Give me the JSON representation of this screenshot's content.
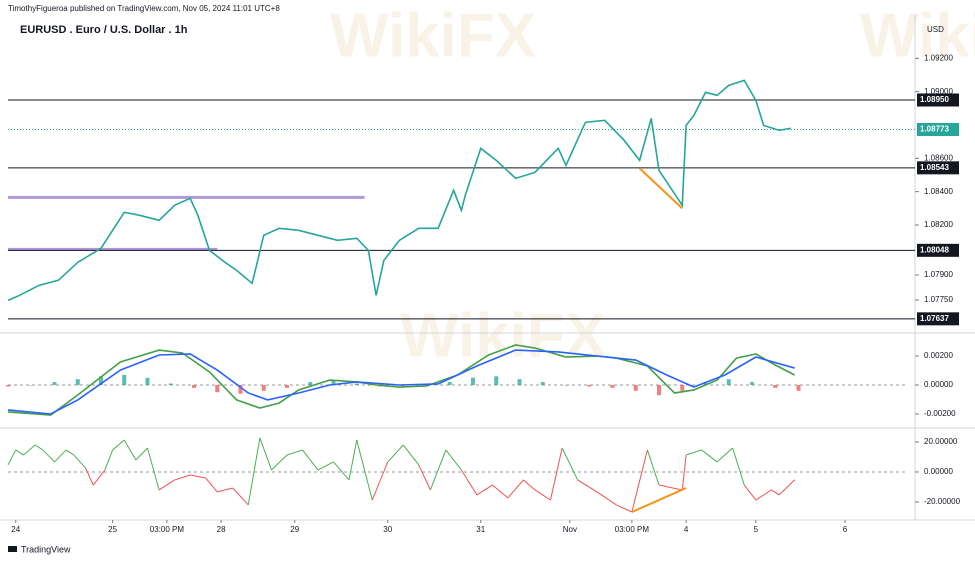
{
  "header": {
    "publisher": "TimothyFigueroa published on TradingView.com, Nov 05, 2024 11:01 UTC+8",
    "watermark": "WikiFX"
  },
  "footer": {
    "brand": "TradingView"
  },
  "chart_data": [
    {
      "type": "line",
      "title": "EURUSD . Euro / U.S. Dollar . 1h",
      "currency": "USD",
      "xlim": [
        0,
        232
      ],
      "ylim": [
        1.0757,
        1.0949
      ],
      "yticks": [
        {
          "value": 1.092,
          "label": "1.09200"
        },
        {
          "value": 1.09,
          "label": "1.09000"
        },
        {
          "value": 1.086,
          "label": "1.08600"
        },
        {
          "value": 1.084,
          "label": "1.08400"
        },
        {
          "value": 1.082,
          "label": "1.08200"
        },
        {
          "value": 1.079,
          "label": "1.07900"
        },
        {
          "value": 1.0775,
          "label": "1.07750"
        }
      ],
      "series": [
        {
          "color": "#26a69a",
          "x": [
            0,
            3,
            8,
            13,
            18,
            24,
            27,
            30,
            34,
            39,
            43,
            47,
            49,
            52,
            56,
            59,
            63,
            66,
            70,
            75,
            80,
            85,
            90,
            93,
            95,
            97,
            101,
            106,
            111,
            115,
            117,
            118,
            122,
            126,
            131,
            136,
            142,
            144,
            149,
            154,
            159,
            163,
            166,
            168,
            174,
            175,
            177,
            180,
            183,
            186,
            190,
            193,
            195,
            199,
            202
          ],
          "values": [
            1.07748,
            1.07778,
            1.07838,
            1.07868,
            1.07976,
            1.0806,
            1.08168,
            1.08276,
            1.08258,
            1.08228,
            1.08318,
            1.0836,
            1.08258,
            1.08048,
            1.07976,
            1.07928,
            1.0785,
            1.08138,
            1.0818,
            1.08168,
            1.08138,
            1.08108,
            1.0812,
            1.08048,
            1.07778,
            1.07988,
            1.08108,
            1.0818,
            1.0818,
            1.08408,
            1.08288,
            1.08378,
            1.0866,
            1.08588,
            1.0848,
            1.08516,
            1.0866,
            1.08558,
            1.08816,
            1.08828,
            1.08708,
            1.08588,
            1.0884,
            1.08528,
            1.08318,
            1.08798,
            1.08858,
            1.08996,
            1.08978,
            1.09038,
            1.09068,
            1.08948,
            1.08798,
            1.08768,
            1.0878
          ]
        }
      ],
      "levels": [
        {
          "value": 1.0895,
          "label": "1.08950"
        },
        1.08543,
        1.08048,
        1.07637
      ],
      "last_price": 1.08773,
      "last_price_color": "#26a69a",
      "zones": [
        {
          "value": 1.08366,
          "from": 0,
          "to": 92,
          "color": "#9575cd"
        },
        {
          "value": 1.08054,
          "from": 0,
          "to": 54,
          "color": "#9575cd"
        }
      ],
      "trendlines": [
        {
          "x": [
            163,
            174
          ],
          "values": [
            1.0854,
            1.083
          ],
          "color": "#f7931a"
        }
      ]
    },
    {
      "type": "combo",
      "xlim": [
        0,
        232
      ],
      "ylim": [
        -0.00276,
        0.00345
      ],
      "zero_line": true,
      "yticks": [
        {
          "value": 0.002,
          "label": "0.00200"
        },
        {
          "value": 0,
          "label": "0.00000"
        },
        {
          "value": -0.002,
          "label": "-0.00200"
        }
      ],
      "series": [
        {
          "type": "bar",
          "color": "#26a69a",
          "negative_color": "#ef5350",
          "x": [
            0,
            6,
            12,
            18,
            24,
            30,
            36,
            42,
            48,
            54,
            60,
            66,
            72,
            78,
            84,
            90,
            96,
            102,
            108,
            114,
            120,
            126,
            132,
            138,
            144,
            150,
            156,
            162,
            168,
            174,
            180,
            186,
            192,
            198,
            204
          ],
          "values": [
            -0.0001,
            0,
            0.0002,
            0.0004,
            0.0006,
            0.0007,
            0.0005,
            0.0001,
            -0.0002,
            -0.0005,
            -0.0006,
            -0.0004,
            -0.0002,
            0.0002,
            0.0003,
            0.0001,
            -0.0001,
            -0.0001,
            -0.0001,
            0.0002,
            0.0005,
            0.0006,
            0.0004,
            0.0002,
            0,
            -0.0001,
            -0.0002,
            -0.0004,
            -0.0007,
            -0.0004,
            0.0002,
            0.0004,
            0.0002,
            -0.0002,
            -0.0004
          ]
        },
        {
          "type": "line",
          "color": "#43a047",
          "x": [
            0,
            11,
            18,
            29,
            39,
            45,
            52,
            59,
            65,
            70,
            75,
            83,
            90,
            95,
            101,
            108,
            116,
            124,
            131,
            136,
            144,
            152,
            157,
            165,
            172,
            177,
            183,
            188,
            193,
            198,
            203
          ],
          "values": [
            -0.00186,
            -0.00207,
            -0.00069,
            0.00159,
            0.00241,
            0.00221,
            0.0009,
            -0.00103,
            -0.00159,
            -0.00124,
            -0.00034,
            0.00034,
            0.00021,
            0,
            -0.00014,
            -7e-05,
            0.00069,
            0.00207,
            0.00276,
            0.00255,
            0.00193,
            0.002,
            0.00186,
            0.00131,
            -0.00055,
            -0.00034,
            0.00034,
            0.00186,
            0.00214,
            0.00138,
            0.00069
          ]
        },
        {
          "type": "line",
          "color": "#2962ff",
          "x": [
            0,
            11,
            18,
            29,
            39,
            47,
            54,
            62,
            67,
            75,
            83,
            90,
            101,
            111,
            121,
            131,
            142,
            152,
            162,
            170,
            177,
            185,
            193,
            203
          ],
          "values": [
            -0.00172,
            -0.002,
            -0.00103,
            0.00103,
            0.00207,
            0.00214,
            0.00103,
            -0.00055,
            -0.00103,
            -0.00055,
            0,
            0.00021,
            0,
            7e-05,
            0.00131,
            0.00241,
            0.00228,
            0.002,
            0.00172,
            0.00069,
            -0.00014,
            0.00069,
            0.00193,
            0.00117
          ]
        }
      ]
    },
    {
      "type": "line",
      "xlim": [
        0,
        232
      ],
      "ylim": [
        -30.7,
        28
      ],
      "zero_line": true,
      "yticks": [
        {
          "value": 20,
          "label": "20.00000"
        },
        {
          "value": 0,
          "label": "0.00000"
        },
        {
          "value": -20,
          "label": "-20.00000"
        }
      ],
      "series": [
        {
          "color": "#4caf50",
          "negative_color": "#ef5350",
          "x": [
            0,
            2,
            4,
            7,
            9,
            12,
            15,
            17,
            20,
            22,
            25,
            27,
            30,
            33,
            36,
            39,
            43,
            47,
            51,
            54,
            58,
            62,
            65,
            68,
            72,
            76,
            80,
            84,
            88,
            90,
            94,
            98,
            102,
            106,
            109,
            113,
            117,
            121,
            125,
            129,
            133,
            136,
            140,
            143,
            147,
            152,
            157,
            161,
            165,
            168,
            174,
            175,
            179,
            183,
            187,
            190,
            193,
            197,
            199,
            203
          ],
          "values": [
            4.7,
            14.7,
            11.3,
            18,
            14.7,
            6.7,
            14.7,
            11.3,
            2.7,
            -8.7,
            1.3,
            14.7,
            21.3,
            8,
            16,
            -12,
            -5.3,
            -2,
            -4,
            -13.3,
            -10.7,
            -22,
            22.7,
            1.3,
            11.3,
            14.7,
            1.3,
            6.7,
            -5.3,
            21.3,
            -18.7,
            6.7,
            18,
            4.7,
            -12,
            14.7,
            1.3,
            -15.3,
            -8.7,
            -17.3,
            -5.3,
            -12,
            -18.7,
            16,
            -5.3,
            -13.3,
            -22,
            -26.7,
            14.7,
            -8.7,
            -12,
            11.3,
            14.7,
            6.7,
            16,
            -8.7,
            -18.7,
            -12,
            -15.3,
            -5.3
          ]
        }
      ],
      "trendlines": [
        {
          "x": [
            161,
            175
          ],
          "values": [
            -26.7,
            -10.7
          ],
          "color": "#f7931a"
        }
      ],
      "xticks": [
        {
          "value": 2,
          "label": "24"
        },
        {
          "value": 27,
          "label": "25"
        },
        {
          "value": 41,
          "label": "03:00 PM"
        },
        {
          "value": 55,
          "label": "28"
        },
        {
          "value": 74,
          "label": "29"
        },
        {
          "value": 98,
          "label": "30"
        },
        {
          "value": 122,
          "label": "31"
        },
        {
          "value": 145,
          "label": "Nov"
        },
        {
          "value": 161,
          "label": "03:00 PM"
        },
        {
          "value": 175,
          "label": "4"
        },
        {
          "value": 193,
          "label": "5"
        },
        {
          "value": 216,
          "label": "6"
        }
      ]
    }
  ]
}
